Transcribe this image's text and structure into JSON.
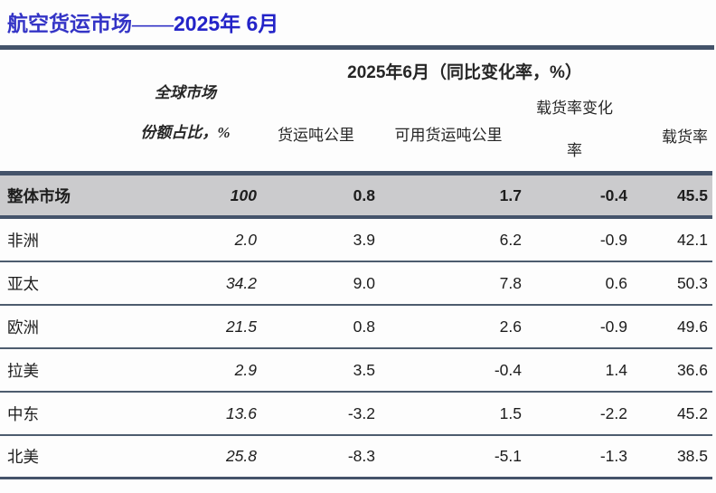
{
  "title": {
    "prefix": "航空货运市场——",
    "period": "2025年 6月"
  },
  "chart_data": {
    "type": "table",
    "title": "航空货运市场——2025年 6月",
    "group_header": "2025年6月（同比变化率，%）",
    "columns": [
      "全球市场份额占比，%",
      "货运吨公里",
      "可用货运吨公里",
      "载货率变化率",
      "载货率"
    ],
    "rows": [
      {
        "region": "整体市场",
        "share": "100",
        "ftk": "0.8",
        "aftk": "1.7",
        "lf_change": "-0.4",
        "lf": "45.5"
      },
      {
        "region": "非洲",
        "share": "2.0",
        "ftk": "3.9",
        "aftk": "6.2",
        "lf_change": "-0.9",
        "lf": "42.1"
      },
      {
        "region": "亚太",
        "share": "34.2",
        "ftk": "9.0",
        "aftk": "7.8",
        "lf_change": "0.6",
        "lf": "50.3"
      },
      {
        "region": "欧洲",
        "share": "21.5",
        "ftk": "0.8",
        "aftk": "2.6",
        "lf_change": "-0.9",
        "lf": "49.6"
      },
      {
        "region": "拉美",
        "share": "2.9",
        "ftk": "3.5",
        "aftk": "-0.4",
        "lf_change": "1.4",
        "lf": "36.6"
      },
      {
        "region": "中东",
        "share": "13.6",
        "ftk": "-3.2",
        "aftk": "1.5",
        "lf_change": "-2.2",
        "lf": "45.2"
      },
      {
        "region": "北美",
        "share": "25.8",
        "ftk": "-8.3",
        "aftk": "-5.1",
        "lf_change": "-1.3",
        "lf": "38.5"
      }
    ]
  },
  "headers": {
    "group": "2025年6月（同比变化率，%）",
    "share_line1": "全球市场",
    "share_line2": "份额占比，%",
    "ftk": "货运吨公里",
    "aftk": "可用货运吨公里",
    "lf_change_line1": "载货率变化",
    "lf_change_line2": "率",
    "lf": "载货率"
  },
  "colors": {
    "title_blue": "#2c2cc6",
    "bar_dark": "#44536a",
    "row_gray": "#cbcbcd"
  }
}
